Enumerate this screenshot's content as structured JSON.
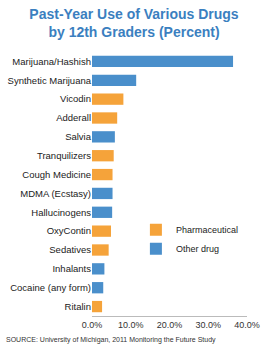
{
  "chart_data": {
    "type": "bar",
    "orientation": "horizontal",
    "title": "Past-Year Use of Various Drugs\nby 12th Graders (Percent)",
    "annotations": [
      "SOURCE: University of Michigan, 2011 Monitoring the Future Study"
    ],
    "categories": [
      "Marijuana/Hashish",
      "Synthetic Marijuana",
      "Vicodin",
      "Adderall",
      "Salvia",
      "Tranquilizers",
      "Cough Medicine",
      "MDMA (Ecstasy)",
      "Hallucinogens",
      "OxyContin",
      "Sedatives",
      "Inhalants",
      "Cocaine (any form)",
      "Ritalin"
    ],
    "series": [
      {
        "name": "Pharmaceutical",
        "color": "#f5a33a",
        "values": [
          null,
          null,
          8.1,
          6.5,
          null,
          5.6,
          5.3,
          null,
          null,
          4.9,
          4.3,
          null,
          null,
          2.6
        ]
      },
      {
        "name": "Other drug",
        "color": "#4a8fcb",
        "values": [
          36.4,
          11.4,
          null,
          null,
          5.9,
          null,
          null,
          5.3,
          5.2,
          null,
          null,
          3.2,
          2.9,
          null
        ]
      }
    ],
    "xlim": [
      0,
      40
    ],
    "xticks": [
      {
        "value": 0,
        "label": "0.0%"
      },
      {
        "value": 10,
        "label": "10.0%"
      },
      {
        "value": 20,
        "label": "20.0%"
      },
      {
        "value": 30,
        "label": "30.0%"
      },
      {
        "value": 40,
        "label": "40.0%"
      }
    ],
    "grid": false,
    "legend": "lower right"
  }
}
